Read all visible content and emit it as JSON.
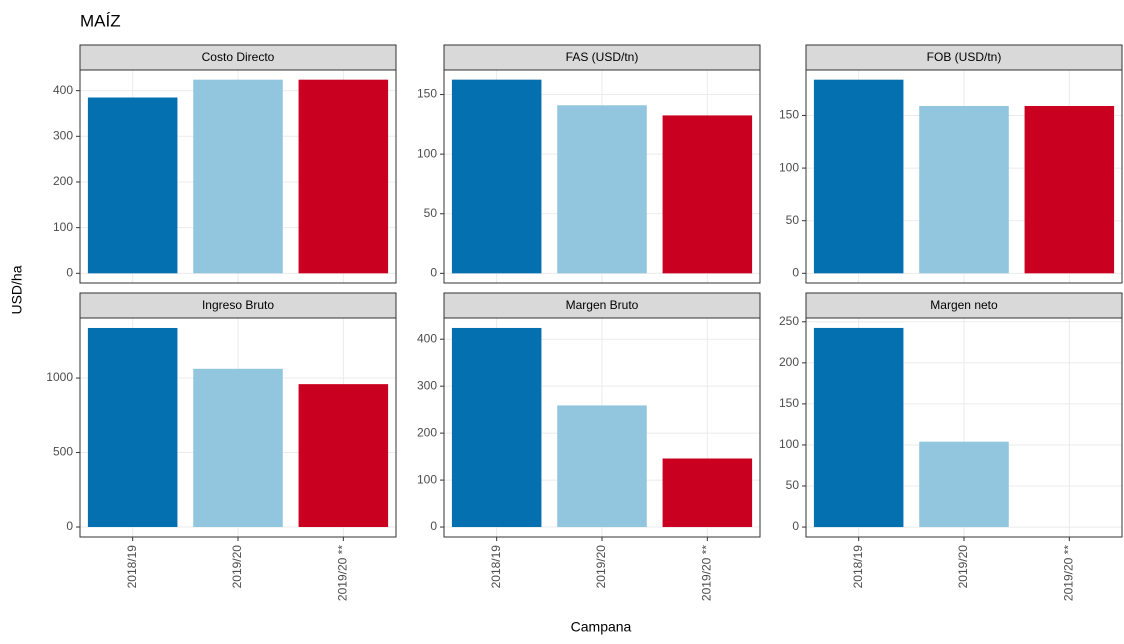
{
  "title": "MAÍZ",
  "x_label": "Campana",
  "y_label": "USD/ha",
  "chart_data": [
    {
      "type": "bar",
      "title": "Costo Directo",
      "categories": [
        "2018/19",
        "2019/20",
        "2019/20 **"
      ],
      "values": [
        385,
        424,
        424
      ],
      "colors": [
        "#0570b0",
        "#92c5de",
        "#ca0020"
      ],
      "ylim": [
        -21.2,
        445.2
      ],
      "yticks": [
        0,
        100,
        200,
        300,
        400
      ],
      "grid": true
    },
    {
      "type": "bar",
      "title": "FAS (USD/tn)",
      "categories": [
        "2018/19",
        "2019/20",
        "2019/20 **"
      ],
      "values": [
        162.5,
        141,
        132.5
      ],
      "colors": [
        "#0570b0",
        "#92c5de",
        "#ca0020"
      ],
      "ylim": [
        -8.1,
        170.6
      ],
      "yticks": [
        0,
        50,
        100,
        150
      ],
      "grid": true
    },
    {
      "type": "bar",
      "title": "FOB (USD/tn)",
      "categories": [
        "2018/19",
        "2019/20",
        "2019/20 **"
      ],
      "values": [
        184,
        159,
        159
      ],
      "colors": [
        "#0570b0",
        "#92c5de",
        "#ca0020"
      ],
      "ylim": [
        -9.2,
        193.2
      ],
      "yticks": [
        0,
        50,
        100,
        150
      ],
      "grid": true
    },
    {
      "type": "bar",
      "title": "Ingreso Bruto",
      "categories": [
        "2018/19",
        "2019/20",
        "2019/20 **"
      ],
      "values": [
        1336,
        1062,
        959
      ],
      "colors": [
        "#0570b0",
        "#92c5de",
        "#ca0020"
      ],
      "ylim": [
        -67,
        1403
      ],
      "yticks": [
        0,
        500,
        1000
      ],
      "grid": true
    },
    {
      "type": "bar",
      "title": "Margen Bruto",
      "categories": [
        "2018/19",
        "2019/20",
        "2019/20 **"
      ],
      "values": [
        424,
        259,
        146
      ],
      "colors": [
        "#0570b0",
        "#92c5de",
        "#ca0020"
      ],
      "ylim": [
        -21.2,
        445.2
      ],
      "yticks": [
        0,
        100,
        200,
        300,
        400
      ],
      "grid": true
    },
    {
      "type": "bar",
      "title": "Margen neto",
      "categories": [
        "2018/19",
        "2019/20",
        "2019/20 **"
      ],
      "values": [
        242.5,
        104,
        null
      ],
      "colors": [
        "#0570b0",
        "#92c5de",
        "#ca0020"
      ],
      "ylim": [
        -12.1,
        254.6
      ],
      "yticks": [
        0,
        50,
        100,
        150,
        200,
        250
      ],
      "grid": true
    }
  ]
}
